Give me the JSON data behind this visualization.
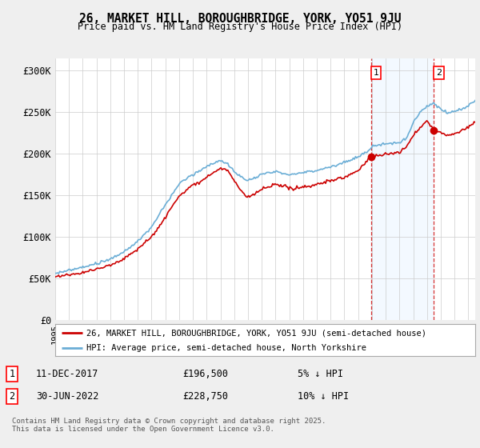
{
  "title_line1": "26, MARKET HILL, BOROUGHBRIDGE, YORK, YO51 9JU",
  "title_line2": "Price paid vs. HM Land Registry's House Price Index (HPI)",
  "ylabel_ticks": [
    "£0",
    "£50K",
    "£100K",
    "£150K",
    "£200K",
    "£250K",
    "£300K"
  ],
  "ytick_values": [
    0,
    50000,
    100000,
    150000,
    200000,
    250000,
    300000
  ],
  "ylim": [
    0,
    315000
  ],
  "xlim_start": 1995.0,
  "xlim_end": 2025.5,
  "hpi_color": "#6baed6",
  "price_color": "#cc0000",
  "shade_color": "#ddeeff",
  "marker1_x": 2017.94,
  "marker1_y": 196500,
  "marker1_label": "1",
  "marker2_x": 2022.5,
  "marker2_y": 228750,
  "marker2_label": "2",
  "annotation1_date": "11-DEC-2017",
  "annotation1_price": "£196,500",
  "annotation1_note": "5% ↓ HPI",
  "annotation2_date": "30-JUN-2022",
  "annotation2_price": "£228,750",
  "annotation2_note": "10% ↓ HPI",
  "legend_label1": "26, MARKET HILL, BOROUGHBRIDGE, YORK, YO51 9JU (semi-detached house)",
  "legend_label2": "HPI: Average price, semi-detached house, North Yorkshire",
  "footer": "Contains HM Land Registry data © Crown copyright and database right 2025.\nThis data is licensed under the Open Government Licence v3.0.",
  "background_color": "#efefef",
  "plot_background": "#ffffff",
  "grid_color": "#cccccc"
}
